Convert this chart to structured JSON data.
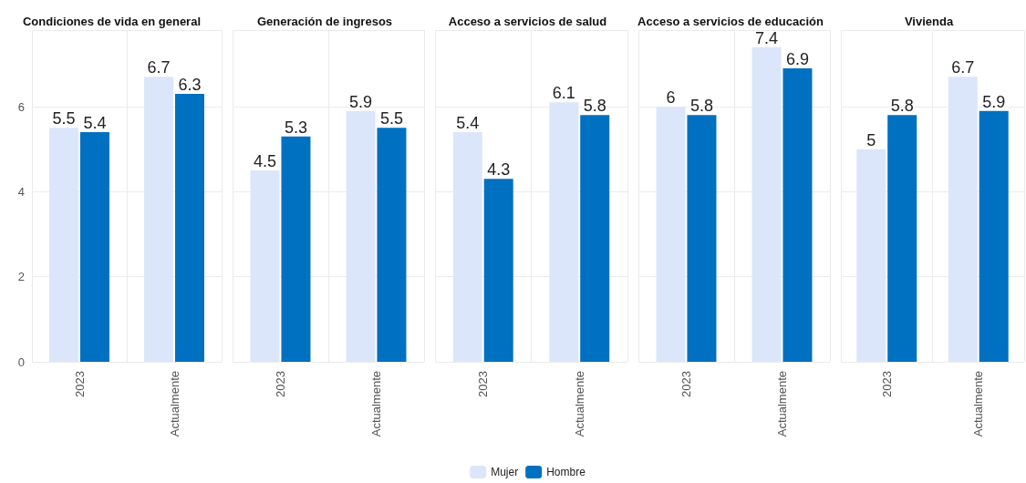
{
  "chart_data": [
    {
      "type": "bar",
      "title": "Condiciones de vida en general",
      "categories": [
        "2023",
        "Actualmente"
      ],
      "series": [
        {
          "color": "#dce6fa",
          "values": [
            5.5,
            6.7
          ]
        },
        {
          "color": "#0070c0",
          "values": [
            5.4,
            6.3
          ]
        }
      ],
      "ylim": [
        0,
        7.8
      ],
      "yticks": [
        0,
        2,
        4,
        6
      ],
      "data_labels": true,
      "grid": true
    },
    {
      "type": "bar",
      "title": "Generación de ingresos",
      "categories": [
        "2023",
        "Actualmente"
      ],
      "series": [
        {
          "color": "#dce6fa",
          "values": [
            4.5,
            5.9
          ]
        },
        {
          "color": "#0070c0",
          "values": [
            5.3,
            5.5
          ]
        }
      ],
      "ylim": [
        0,
        7.8
      ],
      "yticks": [
        0,
        2,
        4,
        6
      ],
      "data_labels": true,
      "grid": true,
      "tick_labels": "x"
    },
    {
      "type": "bar",
      "title": "Acceso a servicios de salud",
      "categories": [
        "2023",
        "Actualmente"
      ],
      "series": [
        {
          "name": "Mujer",
          "color": "#dce6fa",
          "values": [
            5.4,
            6.1
          ]
        },
        {
          "name": "Hombre",
          "color": "#0070c0",
          "values": [
            4.3,
            5.8
          ]
        }
      ],
      "ylim": [
        0,
        7.8
      ],
      "yticks": [
        0,
        2,
        4,
        6
      ],
      "data_labels": true,
      "grid": true,
      "tick_labels": "x",
      "legend": "bottom"
    },
    {
      "type": "bar",
      "title": "Acceso a servicios de educación",
      "categories": [
        "2023",
        "Actualmente"
      ],
      "series": [
        {
          "color": "#dce6fa",
          "values": [
            6,
            7.4
          ]
        },
        {
          "color": "#0070c0",
          "values": [
            5.8,
            6.9
          ]
        }
      ],
      "ylim": [
        0,
        7.8
      ],
      "yticks": [
        0,
        2,
        4,
        6
      ],
      "data_labels": true,
      "grid": true,
      "tick_labels": "x"
    },
    {
      "type": "bar",
      "title": "Vivienda",
      "categories": [
        "2023",
        "Actualmente"
      ],
      "series": [
        {
          "color": "#dce6fa",
          "values": [
            5,
            6.7
          ]
        },
        {
          "color": "#0070c0",
          "values": [
            5.8,
            5.9
          ]
        }
      ],
      "ylim": [
        0,
        7.8
      ],
      "yticks": [
        0,
        2,
        4,
        6
      ],
      "data_labels": true,
      "grid": true,
      "tick_labels": "x"
    }
  ]
}
